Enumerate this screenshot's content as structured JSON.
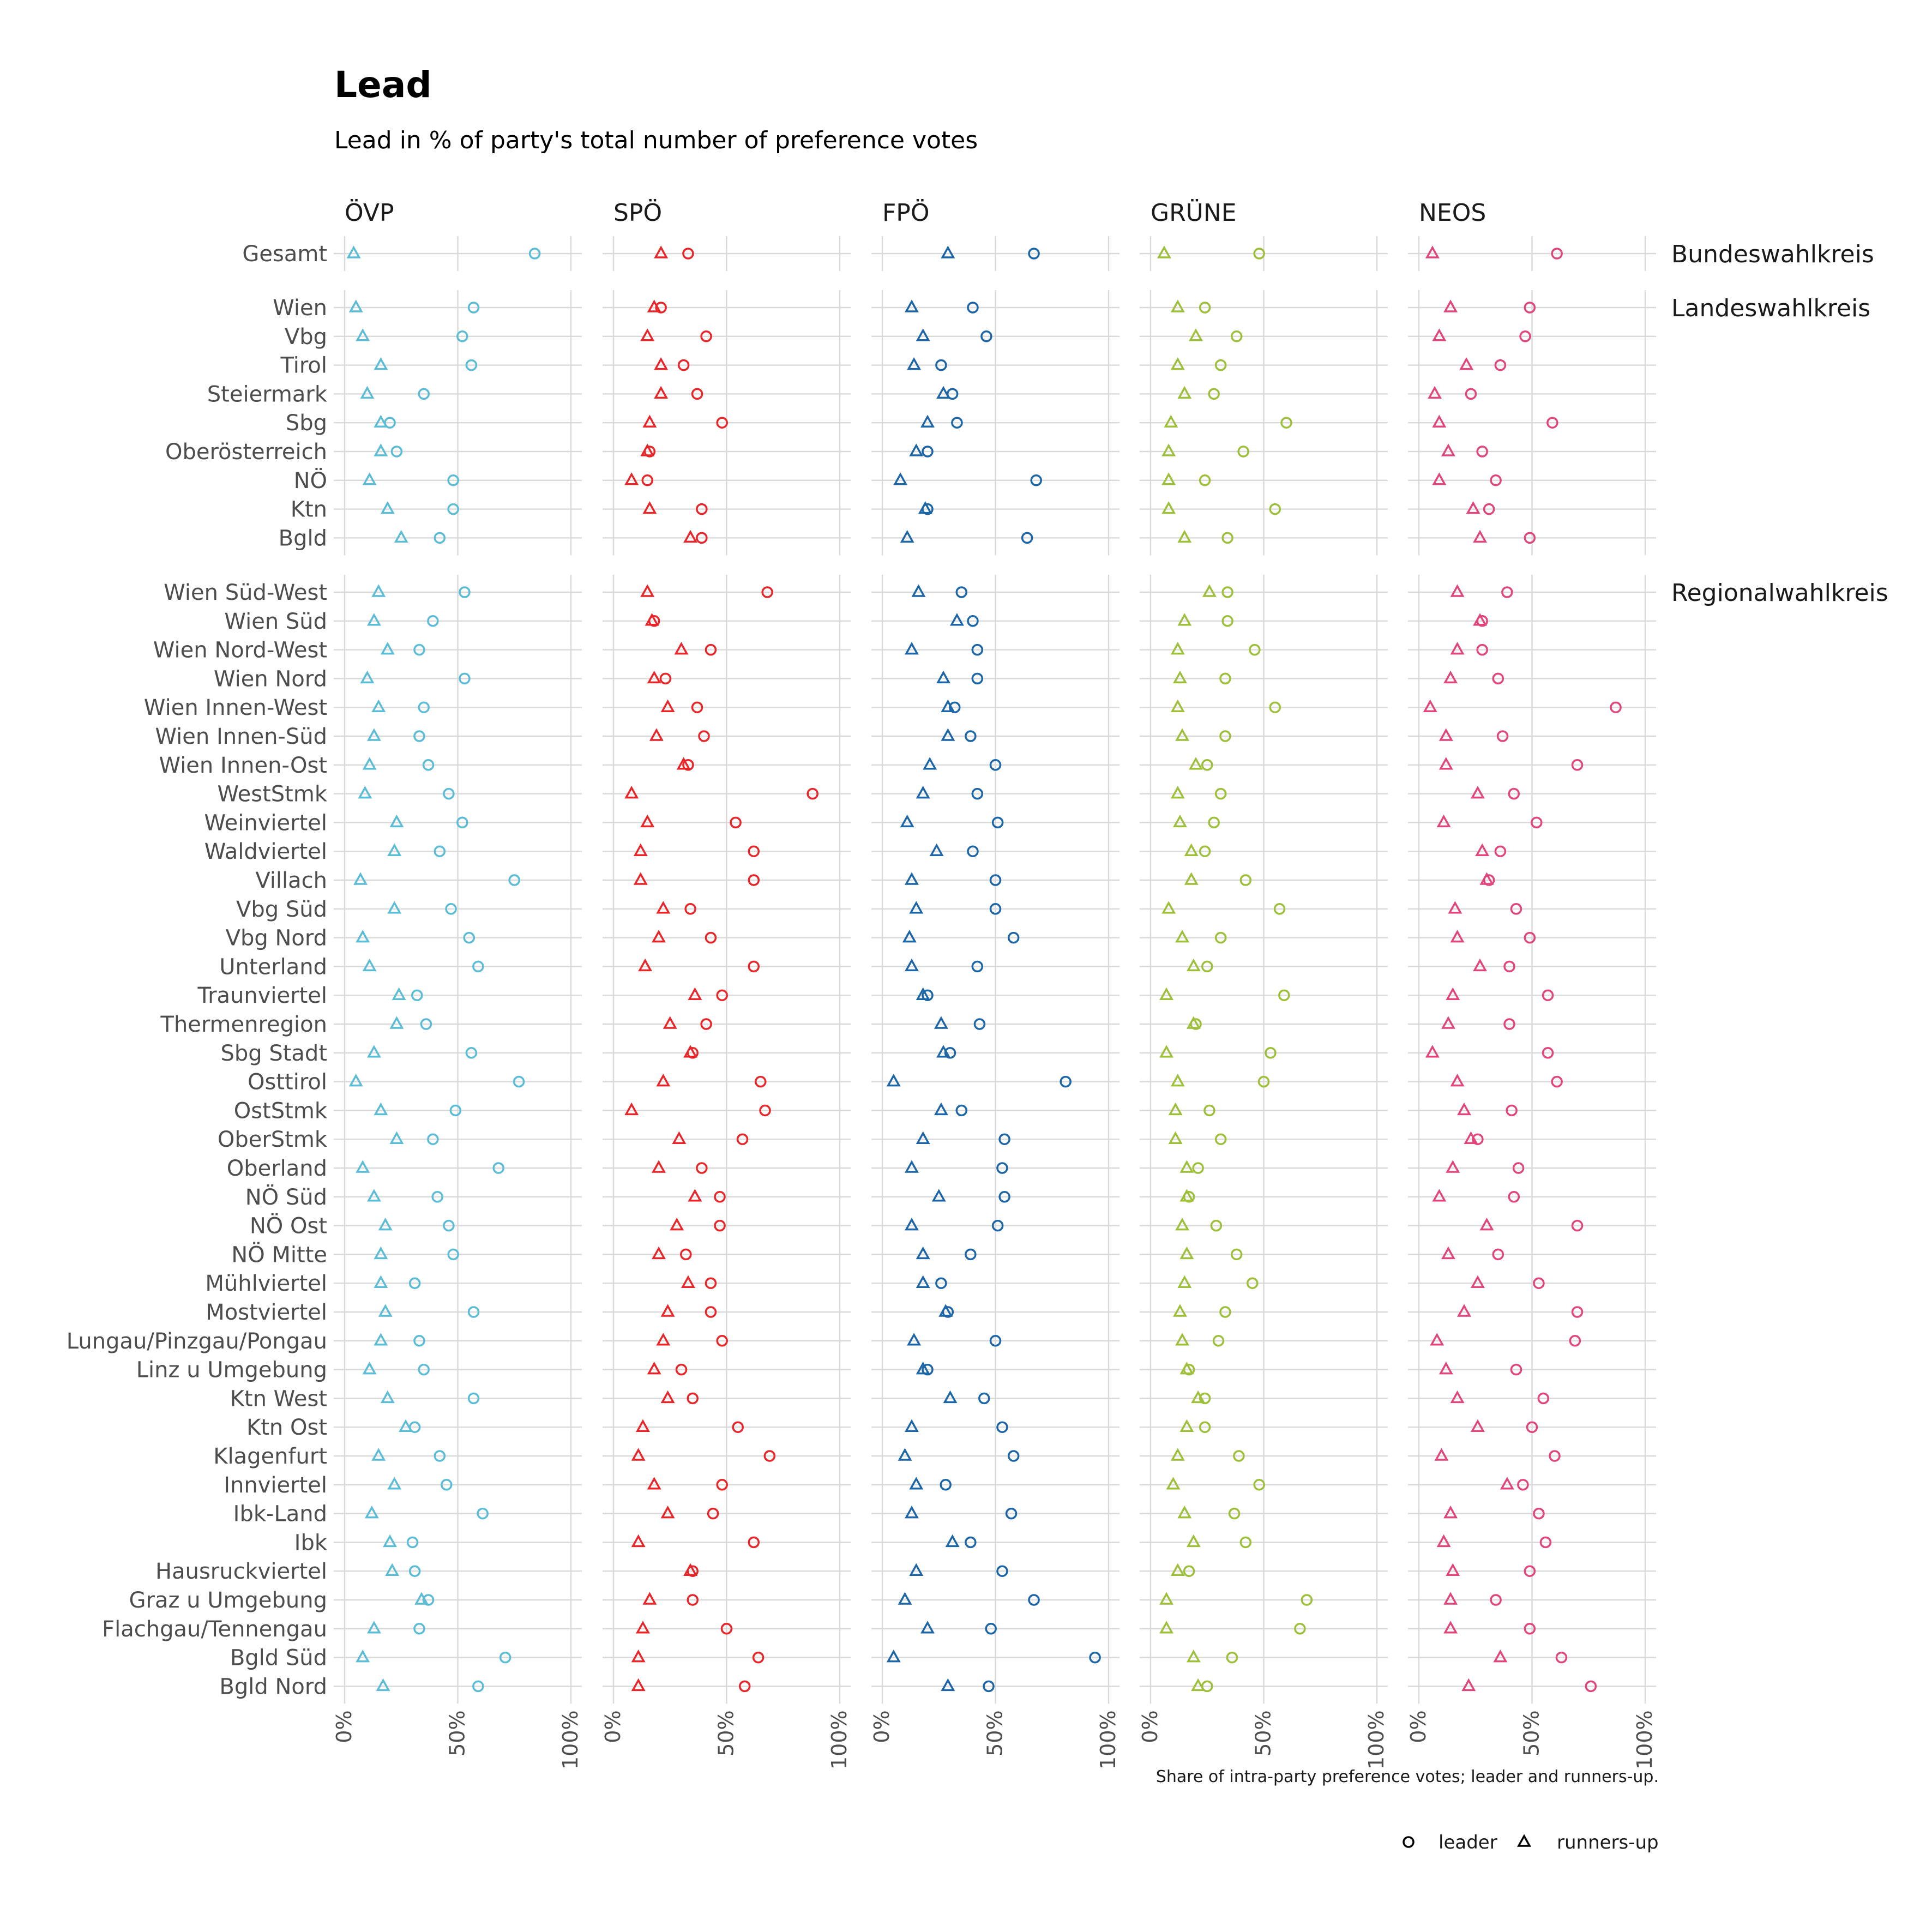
{
  "title": "Lead",
  "subtitle": "Lead in % of party's total number of preference votes",
  "caption": "Share of intra-party preference votes; leader and runners-up.",
  "legend": [
    {
      "label": "leader",
      "shape": "circle"
    },
    {
      "label": "runners-up",
      "shape": "triangle"
    }
  ],
  "parties": [
    {
      "name": "ÖVP",
      "color": "#5bbcd6"
    },
    {
      "name": "SPÖ",
      "color": "#e8262a"
    },
    {
      "name": "FPÖ",
      "color": "#1c66a8"
    },
    {
      "name": "GRÜNE",
      "color": "#9dbf3a"
    },
    {
      "name": "NEOS",
      "color": "#e0457b"
    }
  ],
  "groups": [
    {
      "name": "Bundeswahlkreis",
      "rows": [
        "Gesamt"
      ]
    },
    {
      "name": "Landeswahlkreis",
      "rows": [
        "Wien",
        "Vbg",
        "Tirol",
        "Steiermark",
        "Sbg",
        "Oberösterreich",
        "NÖ",
        "Ktn",
        "Bgld"
      ]
    },
    {
      "name": "Regionalwahlkreis",
      "rows": [
        "Wien Süd-West",
        "Wien Süd",
        "Wien Nord-West",
        "Wien Nord",
        "Wien Innen-West",
        "Wien Innen-Süd",
        "Wien Innen-Ost",
        "WestStmk",
        "Weinviertel",
        "Waldviertel",
        "Villach",
        "Vbg Süd",
        "Vbg Nord",
        "Unterland",
        "Traunviertel",
        "Thermenregion",
        "Sbg Stadt",
        "Osttirol",
        "OstStmk",
        "OberStmk",
        "Oberland",
        "NÖ Süd",
        "NÖ Ost",
        "NÖ Mitte",
        "Mühlviertel",
        "Mostviertel",
        "Lungau/Pinzgau/Pongau",
        "Linz u Umgebung",
        "Ktn West",
        "Ktn Ost",
        "Klagenfurt",
        "Innviertel",
        "Ibk-Land",
        "Ibk",
        "Hausruckviertel",
        "Graz u Umgebung",
        "Flachgau/Tennengau",
        "Bgld Süd",
        "Bgld Nord"
      ]
    }
  ],
  "chart_data": {
    "type": "scatter",
    "title": "Lead",
    "subtitle": "Lead in % of party's total number of preference votes",
    "x_ticks": [
      "0%",
      "50%",
      "100%"
    ],
    "xlim": [
      0,
      100
    ],
    "grid": true,
    "legend_position": "bottom-right",
    "point_order": "leader, runners-up",
    "values": {
      "Gesamt": {
        "ÖVP": [
          84,
          4
        ],
        "SPÖ": [
          33,
          21
        ],
        "FPÖ": [
          67,
          29
        ],
        "GRÜNE": [
          48,
          6
        ],
        "NEOS": [
          61,
          6
        ]
      },
      "Wien": {
        "ÖVP": [
          57,
          5
        ],
        "SPÖ": [
          21,
          18
        ],
        "FPÖ": [
          40,
          13
        ],
        "GRÜNE": [
          24,
          12
        ],
        "NEOS": [
          49,
          14
        ]
      },
      "Vbg": {
        "ÖVP": [
          52,
          8
        ],
        "SPÖ": [
          41,
          15
        ],
        "FPÖ": [
          46,
          18
        ],
        "GRÜNE": [
          38,
          20
        ],
        "NEOS": [
          47,
          9
        ]
      },
      "Tirol": {
        "ÖVP": [
          56,
          16
        ],
        "SPÖ": [
          31,
          21
        ],
        "FPÖ": [
          26,
          14
        ],
        "GRÜNE": [
          31,
          12
        ],
        "NEOS": [
          36,
          21
        ]
      },
      "Steiermark": {
        "ÖVP": [
          35,
          10
        ],
        "SPÖ": [
          37,
          21
        ],
        "FPÖ": [
          31,
          27
        ],
        "GRÜNE": [
          28,
          15
        ],
        "NEOS": [
          23,
          7
        ]
      },
      "Sbg": {
        "ÖVP": [
          20,
          16
        ],
        "SPÖ": [
          48,
          16
        ],
        "FPÖ": [
          33,
          20
        ],
        "GRÜNE": [
          60,
          9
        ],
        "NEOS": [
          59,
          9
        ]
      },
      "Oberösterreich": {
        "ÖVP": [
          23,
          16
        ],
        "SPÖ": [
          16,
          15
        ],
        "FPÖ": [
          20,
          15
        ],
        "GRÜNE": [
          41,
          8
        ],
        "NEOS": [
          28,
          13
        ]
      },
      "NÖ": {
        "ÖVP": [
          48,
          11
        ],
        "SPÖ": [
          15,
          8
        ],
        "FPÖ": [
          68,
          8
        ],
        "GRÜNE": [
          24,
          8
        ],
        "NEOS": [
          34,
          9
        ]
      },
      "Ktn": {
        "ÖVP": [
          48,
          19
        ],
        "SPÖ": [
          39,
          16
        ],
        "FPÖ": [
          20,
          19
        ],
        "GRÜNE": [
          55,
          8
        ],
        "NEOS": [
          31,
          24
        ]
      },
      "Bgld": {
        "ÖVP": [
          42,
          25
        ],
        "SPÖ": [
          39,
          34
        ],
        "FPÖ": [
          64,
          11
        ],
        "GRÜNE": [
          34,
          15
        ],
        "NEOS": [
          49,
          27
        ]
      },
      "Wien Süd-West": {
        "ÖVP": [
          53,
          15
        ],
        "SPÖ": [
          68,
          15
        ],
        "FPÖ": [
          35,
          16
        ],
        "GRÜNE": [
          34,
          26
        ],
        "NEOS": [
          39,
          17
        ]
      },
      "Wien Süd": {
        "ÖVP": [
          39,
          13
        ],
        "SPÖ": [
          18,
          17
        ],
        "FPÖ": [
          40,
          33
        ],
        "GRÜNE": [
          34,
          15
        ],
        "NEOS": [
          28,
          27
        ]
      },
      "Wien Nord-West": {
        "ÖVP": [
          33,
          19
        ],
        "SPÖ": [
          43,
          30
        ],
        "FPÖ": [
          42,
          13
        ],
        "GRÜNE": [
          46,
          12
        ],
        "NEOS": [
          28,
          17
        ]
      },
      "Wien Nord": {
        "ÖVP": [
          53,
          10
        ],
        "SPÖ": [
          23,
          18
        ],
        "FPÖ": [
          42,
          27
        ],
        "GRÜNE": [
          33,
          13
        ],
        "NEOS": [
          35,
          14
        ]
      },
      "Wien Innen-West": {
        "ÖVP": [
          35,
          15
        ],
        "SPÖ": [
          37,
          24
        ],
        "FPÖ": [
          32,
          29
        ],
        "GRÜNE": [
          55,
          12
        ],
        "NEOS": [
          87,
          5
        ]
      },
      "Wien Innen-Süd": {
        "ÖVP": [
          33,
          13
        ],
        "SPÖ": [
          40,
          19
        ],
        "FPÖ": [
          39,
          29
        ],
        "GRÜNE": [
          33,
          14
        ],
        "NEOS": [
          37,
          12
        ]
      },
      "Wien Innen-Ost": {
        "ÖVP": [
          37,
          11
        ],
        "SPÖ": [
          33,
          31
        ],
        "FPÖ": [
          50,
          21
        ],
        "GRÜNE": [
          25,
          20
        ],
        "NEOS": [
          70,
          12
        ]
      },
      "WestStmk": {
        "ÖVP": [
          46,
          9
        ],
        "SPÖ": [
          88,
          8
        ],
        "FPÖ": [
          42,
          18
        ],
        "GRÜNE": [
          31,
          12
        ],
        "NEOS": [
          42,
          26
        ]
      },
      "Weinviertel": {
        "ÖVP": [
          52,
          23
        ],
        "SPÖ": [
          54,
          15
        ],
        "FPÖ": [
          51,
          11
        ],
        "GRÜNE": [
          28,
          13
        ],
        "NEOS": [
          52,
          11
        ]
      },
      "Waldviertel": {
        "ÖVP": [
          42,
          22
        ],
        "SPÖ": [
          62,
          12
        ],
        "FPÖ": [
          40,
          24
        ],
        "GRÜNE": [
          24,
          18
        ],
        "NEOS": [
          36,
          28
        ]
      },
      "Villach": {
        "ÖVP": [
          75,
          7
        ],
        "SPÖ": [
          62,
          12
        ],
        "FPÖ": [
          50,
          13
        ],
        "GRÜNE": [
          42,
          18
        ],
        "NEOS": [
          31,
          30
        ]
      },
      "Vbg Süd": {
        "ÖVP": [
          47,
          22
        ],
        "SPÖ": [
          34,
          22
        ],
        "FPÖ": [
          50,
          15
        ],
        "GRÜNE": [
          57,
          8
        ],
        "NEOS": [
          43,
          16
        ]
      },
      "Vbg Nord": {
        "ÖVP": [
          55,
          8
        ],
        "SPÖ": [
          43,
          20
        ],
        "FPÖ": [
          58,
          12
        ],
        "GRÜNE": [
          31,
          14
        ],
        "NEOS": [
          49,
          17
        ]
      },
      "Unterland": {
        "ÖVP": [
          59,
          11
        ],
        "SPÖ": [
          62,
          14
        ],
        "FPÖ": [
          42,
          13
        ],
        "GRÜNE": [
          25,
          19
        ],
        "NEOS": [
          40,
          27
        ]
      },
      "Traunviertel": {
        "ÖVP": [
          32,
          24
        ],
        "SPÖ": [
          48,
          36
        ],
        "FPÖ": [
          20,
          18
        ],
        "GRÜNE": [
          59,
          7
        ],
        "NEOS": [
          57,
          15
        ]
      },
      "Thermenregion": {
        "ÖVP": [
          36,
          23
        ],
        "SPÖ": [
          41,
          25
        ],
        "FPÖ": [
          43,
          26
        ],
        "GRÜNE": [
          20,
          19
        ],
        "NEOS": [
          40,
          13
        ]
      },
      "Sbg Stadt": {
        "ÖVP": [
          56,
          13
        ],
        "SPÖ": [
          35,
          34
        ],
        "FPÖ": [
          30,
          27
        ],
        "GRÜNE": [
          53,
          7
        ],
        "NEOS": [
          57,
          6
        ]
      },
      "Osttirol": {
        "ÖVP": [
          77,
          5
        ],
        "SPÖ": [
          65,
          22
        ],
        "FPÖ": [
          81,
          5
        ],
        "GRÜNE": [
          50,
          12
        ],
        "NEOS": [
          61,
          17
        ]
      },
      "OstStmk": {
        "ÖVP": [
          49,
          16
        ],
        "SPÖ": [
          67,
          8
        ],
        "FPÖ": [
          35,
          26
        ],
        "GRÜNE": [
          26,
          11
        ],
        "NEOS": [
          41,
          20
        ]
      },
      "OberStmk": {
        "ÖVP": [
          39,
          23
        ],
        "SPÖ": [
          57,
          29
        ],
        "FPÖ": [
          54,
          18
        ],
        "GRÜNE": [
          31,
          11
        ],
        "NEOS": [
          26,
          23
        ]
      },
      "Oberland": {
        "ÖVP": [
          68,
          8
        ],
        "SPÖ": [
          39,
          20
        ],
        "FPÖ": [
          53,
          13
        ],
        "GRÜNE": [
          21,
          16
        ],
        "NEOS": [
          44,
          15
        ]
      },
      "NÖ Süd": {
        "ÖVP": [
          41,
          13
        ],
        "SPÖ": [
          47,
          36
        ],
        "FPÖ": [
          54,
          25
        ],
        "GRÜNE": [
          17,
          16
        ],
        "NEOS": [
          42,
          9
        ]
      },
      "NÖ Ost": {
        "ÖVP": [
          46,
          18
        ],
        "SPÖ": [
          47,
          28
        ],
        "FPÖ": [
          51,
          13
        ],
        "GRÜNE": [
          29,
          14
        ],
        "NEOS": [
          70,
          30
        ]
      },
      "NÖ Mitte": {
        "ÖVP": [
          48,
          16
        ],
        "SPÖ": [
          32,
          20
        ],
        "FPÖ": [
          39,
          18
        ],
        "GRÜNE": [
          38,
          16
        ],
        "NEOS": [
          35,
          13
        ]
      },
      "Mühlviertel": {
        "ÖVP": [
          31,
          16
        ],
        "SPÖ": [
          43,
          33
        ],
        "FPÖ": [
          26,
          18
        ],
        "GRÜNE": [
          45,
          15
        ],
        "NEOS": [
          53,
          26
        ]
      },
      "Mostviertel": {
        "ÖVP": [
          57,
          18
        ],
        "SPÖ": [
          43,
          24
        ],
        "FPÖ": [
          29,
          28
        ],
        "GRÜNE": [
          33,
          13
        ],
        "NEOS": [
          70,
          20
        ]
      },
      "Lungau/Pinzgau/Pongau": {
        "ÖVP": [
          33,
          16
        ],
        "SPÖ": [
          48,
          22
        ],
        "FPÖ": [
          50,
          14
        ],
        "GRÜNE": [
          30,
          14
        ],
        "NEOS": [
          69,
          8
        ]
      },
      "Linz u Umgebung": {
        "ÖVP": [
          35,
          11
        ],
        "SPÖ": [
          30,
          18
        ],
        "FPÖ": [
          20,
          18
        ],
        "GRÜNE": [
          17,
          16
        ],
        "NEOS": [
          43,
          12
        ]
      },
      "Ktn West": {
        "ÖVP": [
          57,
          19
        ],
        "SPÖ": [
          35,
          24
        ],
        "FPÖ": [
          45,
          30
        ],
        "GRÜNE": [
          24,
          21
        ],
        "NEOS": [
          55,
          17
        ]
      },
      "Ktn Ost": {
        "ÖVP": [
          31,
          27
        ],
        "SPÖ": [
          55,
          13
        ],
        "FPÖ": [
          53,
          13
        ],
        "GRÜNE": [
          24,
          16
        ],
        "NEOS": [
          50,
          26
        ]
      },
      "Klagenfurt": {
        "ÖVP": [
          42,
          15
        ],
        "SPÖ": [
          69,
          11
        ],
        "FPÖ": [
          58,
          10
        ],
        "GRÜNE": [
          39,
          12
        ],
        "NEOS": [
          60,
          10
        ]
      },
      "Innviertel": {
        "ÖVP": [
          45,
          22
        ],
        "SPÖ": [
          48,
          18
        ],
        "FPÖ": [
          28,
          15
        ],
        "GRÜNE": [
          48,
          10
        ],
        "NEOS": [
          46,
          39
        ]
      },
      "Ibk-Land": {
        "ÖVP": [
          61,
          12
        ],
        "SPÖ": [
          44,
          24
        ],
        "FPÖ": [
          57,
          13
        ],
        "GRÜNE": [
          37,
          15
        ],
        "NEOS": [
          53,
          14
        ]
      },
      "Ibk": {
        "ÖVP": [
          30,
          20
        ],
        "SPÖ": [
          62,
          11
        ],
        "FPÖ": [
          39,
          31
        ],
        "GRÜNE": [
          42,
          19
        ],
        "NEOS": [
          56,
          11
        ]
      },
      "Hausruckviertel": {
        "ÖVP": [
          31,
          21
        ],
        "SPÖ": [
          35,
          34
        ],
        "FPÖ": [
          53,
          15
        ],
        "GRÜNE": [
          17,
          12
        ],
        "NEOS": [
          49,
          15
        ]
      },
      "Graz u Umgebung": {
        "ÖVP": [
          37,
          34
        ],
        "SPÖ": [
          35,
          16
        ],
        "FPÖ": [
          67,
          10
        ],
        "GRÜNE": [
          69,
          7
        ],
        "NEOS": [
          34,
          14
        ]
      },
      "Flachgau/Tennengau": {
        "ÖVP": [
          33,
          13
        ],
        "SPÖ": [
          50,
          13
        ],
        "FPÖ": [
          48,
          20
        ],
        "GRÜNE": [
          66,
          7
        ],
        "NEOS": [
          49,
          14
        ]
      },
      "Bgld Süd": {
        "ÖVP": [
          71,
          8
        ],
        "SPÖ": [
          64,
          11
        ],
        "FPÖ": [
          94,
          5
        ],
        "GRÜNE": [
          36,
          19
        ],
        "NEOS": [
          63,
          36
        ]
      },
      "Bgld Nord": {
        "ÖVP": [
          59,
          17
        ],
        "SPÖ": [
          58,
          11
        ],
        "FPÖ": [
          47,
          29
        ],
        "GRÜNE": [
          25,
          21
        ],
        "NEOS": [
          76,
          22
        ]
      }
    }
  }
}
